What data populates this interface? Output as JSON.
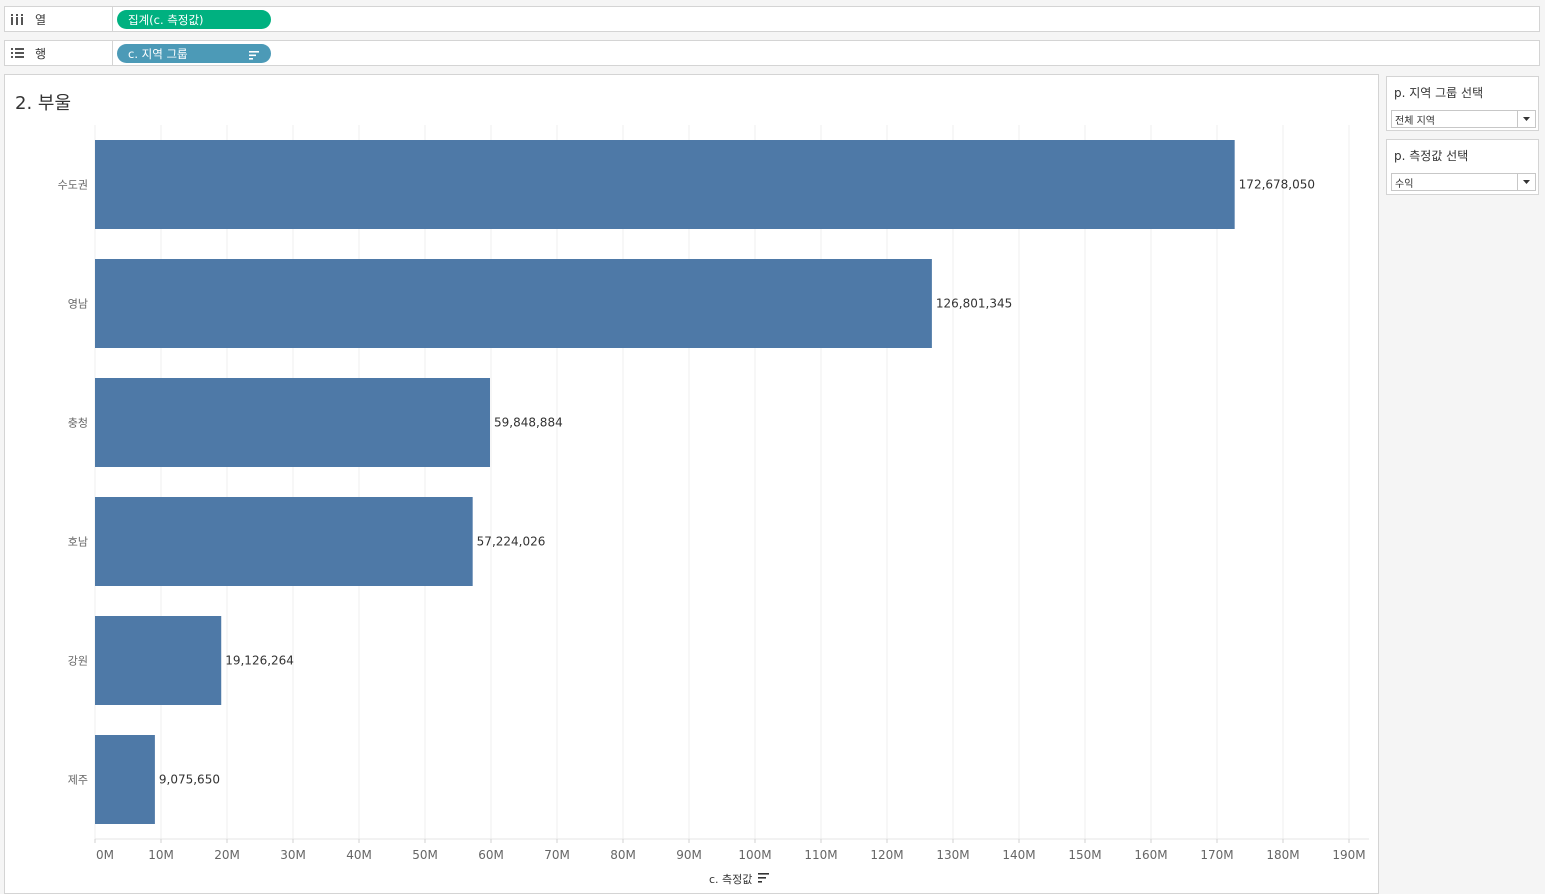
{
  "shelves": {
    "columns": {
      "label": "열",
      "pill": "집계(c. 측정값)"
    },
    "rows": {
      "label": "행",
      "pill": "c. 지역 그룹"
    }
  },
  "viz": {
    "title": "2. 부울",
    "axis_title": "c. 측정값"
  },
  "parameters": [
    {
      "title": "p. 지역 그룹 선택",
      "value": "전체 지역"
    },
    {
      "title": "p. 측정값 선택",
      "value": "수익"
    }
  ],
  "colors": {
    "bar": "#4e79a7",
    "column_pill": "#00b180",
    "row_pill": "#4c9ab7"
  },
  "chart_data": {
    "type": "bar",
    "orientation": "horizontal",
    "categories": [
      "수도권",
      "영남",
      "충청",
      "호남",
      "강원",
      "제주"
    ],
    "values": [
      172678050,
      126801345,
      59848884,
      57224026,
      19126264,
      9075650
    ],
    "value_labels": [
      "172,678,050",
      "126,801,345",
      "59,848,884",
      "57,224,026",
      "19,126,264",
      "9,075,650"
    ],
    "xlabel": "c. 측정값",
    "xlim": [
      0,
      190000000
    ],
    "x_ticks": [
      0,
      10000000,
      20000000,
      30000000,
      40000000,
      50000000,
      60000000,
      70000000,
      80000000,
      90000000,
      100000000,
      110000000,
      120000000,
      130000000,
      140000000,
      150000000,
      160000000,
      170000000,
      180000000,
      190000000
    ],
    "x_tick_labels": [
      "0M",
      "10M",
      "20M",
      "30M",
      "40M",
      "50M",
      "60M",
      "70M",
      "80M",
      "90M",
      "100M",
      "110M",
      "120M",
      "130M",
      "140M",
      "150M",
      "160M",
      "170M",
      "180M",
      "190M"
    ],
    "grid": true
  }
}
